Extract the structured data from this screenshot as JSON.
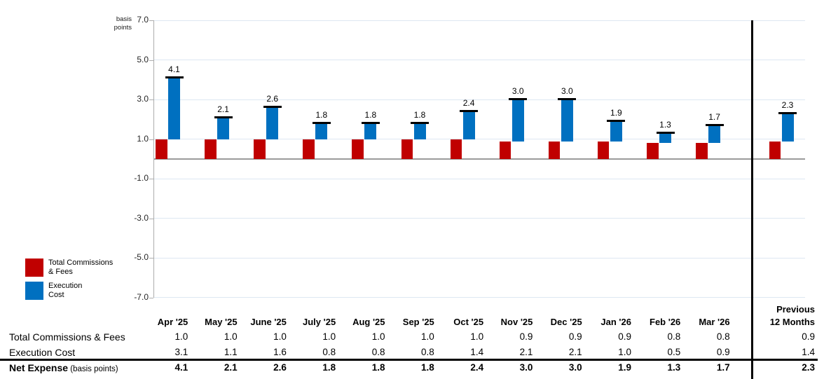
{
  "chart_meta": {
    "unit_label_line1": "basis",
    "unit_label_line2": "points",
    "y_tick_labels": [
      "7.0",
      "5.0",
      "3.0",
      "1.0",
      "-1.0",
      "-3.0",
      "-5.0",
      "-7.0"
    ],
    "y_tick_values": [
      7,
      5,
      3,
      1,
      -1,
      -3,
      -5,
      -7
    ]
  },
  "colors": {
    "commissions_red": "#C00000",
    "execution_blue": "#0070C0",
    "gridline": "#DDE7F2",
    "zero_line": "#9B9B9B",
    "axis_line": "#ADADAD",
    "cap_and_divider": "#000000"
  },
  "legend": {
    "items": [
      {
        "line1": "Total Commissions",
        "line2": "& Fees",
        "color": "#C00000"
      },
      {
        "line1": "Execution",
        "line2": "Cost",
        "color": "#0070C0"
      }
    ]
  },
  "chart_data": {
    "type": "bar",
    "stacked": true,
    "ylabel": "basis points",
    "ylim": [
      -7,
      7
    ],
    "gridline_values": [
      7,
      5,
      3,
      1,
      -1,
      -3,
      -5,
      -7
    ],
    "grid": true,
    "legend_position": "bottom-left",
    "categories": [
      "Apr '25",
      "May '25",
      "June '25",
      "July '25",
      "Aug '25",
      "Sep '25",
      "Oct '25",
      "Nov '25",
      "Dec '25",
      "Jan '26",
      "Feb '26",
      "Mar '26",
      "Previous 12 Months"
    ],
    "series": [
      {
        "name": "Total Commissions & Fees",
        "color": "#C00000",
        "values": [
          1.0,
          1.0,
          1.0,
          1.0,
          1.0,
          1.0,
          1.0,
          0.9,
          0.9,
          0.9,
          0.8,
          0.8,
          0.9
        ]
      },
      {
        "name": "Execution Cost",
        "color": "#0070C0",
        "values": [
          3.1,
          1.1,
          1.6,
          0.8,
          0.8,
          0.8,
          1.4,
          2.1,
          2.1,
          1.0,
          0.5,
          0.9,
          1.4
        ]
      }
    ],
    "net_totals": [
      4.1,
      2.1,
      2.6,
      1.8,
      1.8,
      1.8,
      2.4,
      3.0,
      3.0,
      1.9,
      1.3,
      1.7,
      2.3
    ]
  },
  "table": {
    "month_headers": [
      "Apr '25",
      "May '25",
      "June '25",
      "July '25",
      "Aug '25",
      "Sep '25",
      "Oct '25",
      "Nov '25",
      "Dec '25",
      "Jan '26",
      "Feb '26",
      "Mar '26"
    ],
    "previous_header_line1": "Previous",
    "previous_header_line2": "12 Months",
    "rows": [
      {
        "label": "Total Commissions & Fees",
        "label_suffix": "",
        "bold": false,
        "values": [
          "1.0",
          "1.0",
          "1.0",
          "1.0",
          "1.0",
          "1.0",
          "1.0",
          "0.9",
          "0.9",
          "0.9",
          "0.8",
          "0.8"
        ],
        "previous_value": "0.9"
      },
      {
        "label": "Execution Cost",
        "label_suffix": "",
        "bold": false,
        "values": [
          "3.1",
          "1.1",
          "1.6",
          "0.8",
          "0.8",
          "0.8",
          "1.4",
          "2.1",
          "2.1",
          "1.0",
          "0.5",
          "0.9"
        ],
        "previous_value": "1.4"
      },
      {
        "label": "Net Expense",
        "label_suffix": " (basis points)",
        "bold": true,
        "values": [
          "4.1",
          "2.1",
          "2.6",
          "1.8",
          "1.8",
          "1.8",
          "2.4",
          "3.0",
          "3.0",
          "1.9",
          "1.3",
          "1.7"
        ],
        "previous_value": "2.3"
      }
    ]
  }
}
